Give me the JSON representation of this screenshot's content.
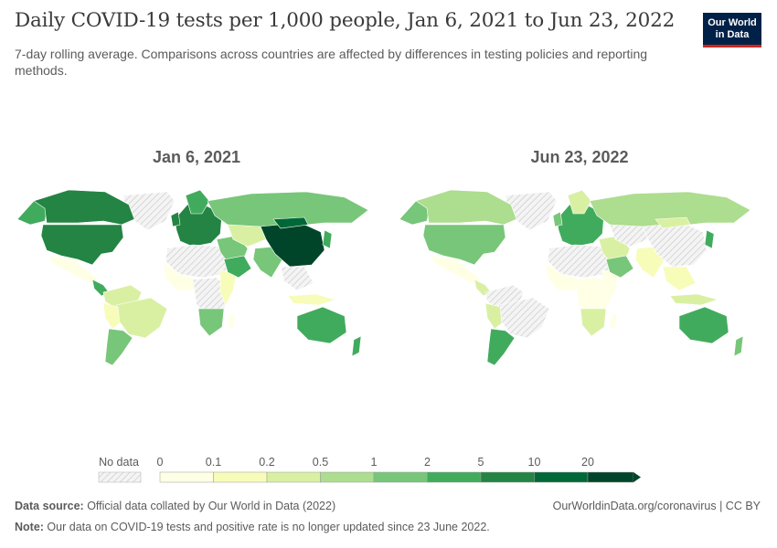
{
  "header": {
    "title": "Daily COVID-19 tests per 1,000 people, Jan 6, 2021 to Jun 23, 2022",
    "subtitle": "7-day rolling average. Comparisons across countries are affected by differences in testing policies and reporting methods.",
    "logo_line1": "Our World",
    "logo_line2": "in Data"
  },
  "maps": {
    "left_title": "Jan 6, 2021",
    "right_title": "Jun 23, 2022"
  },
  "legend": {
    "no_data_label": "No data",
    "ticks": [
      "0",
      "0.1",
      "0.2",
      "0.5",
      "1",
      "2",
      "5",
      "10",
      "20"
    ],
    "colors": [
      "#ffffe5",
      "#f7fcb9",
      "#d9f0a3",
      "#addd8e",
      "#78c679",
      "#41ab5d",
      "#238443",
      "#006837",
      "#004529"
    ]
  },
  "footer": {
    "source_label": "Data source:",
    "source_text": " Official data collated by Our World in Data (2022)",
    "note_label": "Note:",
    "note_text": " Our data on COVID-19 tests and positive rate is no longer updated since 23 June 2022.",
    "url": "OurWorldinData.org/coronavirus | CC BY"
  }
}
